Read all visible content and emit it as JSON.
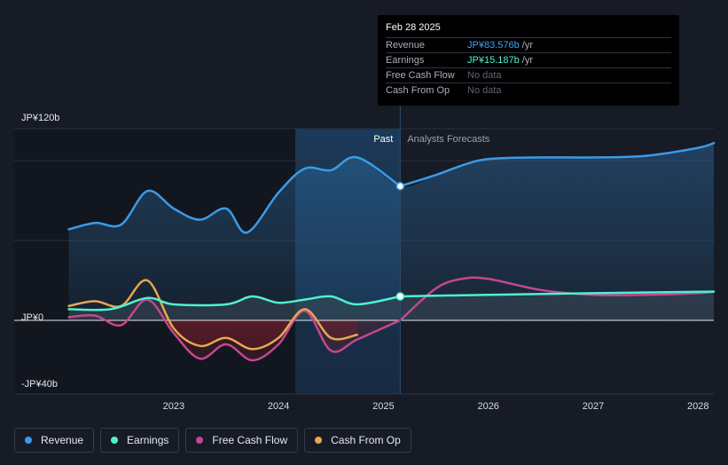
{
  "chart_data": {
    "type": "line",
    "title": "",
    "xlabel": "",
    "ylabel": "",
    "ylim": [
      -40,
      120
    ],
    "y_tick_labels": [
      {
        "value": 120,
        "label": "JP¥120b"
      },
      {
        "value": 0,
        "label": "JP¥0"
      },
      {
        "value": -40,
        "label": "-JP¥40b"
      }
    ],
    "x_tick_labels": [
      {
        "value": 2023.0,
        "label": "2023"
      },
      {
        "value": 2024.0,
        "label": "2024"
      },
      {
        "value": 2025.0,
        "label": "2025"
      },
      {
        "value": 2026.0,
        "label": "2026"
      },
      {
        "value": 2027.0,
        "label": "2027"
      },
      {
        "value": 2028.0,
        "label": "2028"
      }
    ],
    "xlim": [
      2021.75,
      2028.15
    ],
    "divider_x": 2025.16,
    "highlight_start_x": 2024.16,
    "past_label": "Past",
    "forecast_label": "Analysts Forecasts",
    "series": [
      {
        "name": "Revenue",
        "color": "#3a9be8",
        "area": true,
        "past": [
          [
            2022.0,
            57
          ],
          [
            2022.25,
            61
          ],
          [
            2022.5,
            60
          ],
          [
            2022.75,
            81
          ],
          [
            2023.0,
            70
          ],
          [
            2023.25,
            63
          ],
          [
            2023.5,
            70
          ],
          [
            2023.7,
            55
          ],
          [
            2024.0,
            80
          ],
          [
            2024.25,
            95
          ],
          [
            2024.5,
            94
          ],
          [
            2024.75,
            102
          ],
          [
            2025.16,
            84
          ]
        ],
        "forecast": [
          [
            2025.16,
            84
          ],
          [
            2025.5,
            91
          ],
          [
            2025.75,
            97
          ],
          [
            2026.0,
            101
          ],
          [
            2026.5,
            102
          ],
          [
            2027.0,
            102
          ],
          [
            2027.5,
            103
          ],
          [
            2028.0,
            108
          ],
          [
            2028.15,
            111
          ]
        ]
      },
      {
        "name": "Earnings",
        "color": "#4ff0d1",
        "area": true,
        "past": [
          [
            2022.0,
            7
          ],
          [
            2022.4,
            7
          ],
          [
            2022.75,
            14
          ],
          [
            2023.0,
            10
          ],
          [
            2023.5,
            10
          ],
          [
            2023.75,
            15
          ],
          [
            2024.0,
            11
          ],
          [
            2024.25,
            13
          ],
          [
            2024.5,
            15
          ],
          [
            2024.75,
            10
          ],
          [
            2025.16,
            15
          ]
        ],
        "forecast": [
          [
            2025.16,
            15
          ],
          [
            2026.0,
            16
          ],
          [
            2027.0,
            17
          ],
          [
            2028.15,
            18
          ]
        ]
      },
      {
        "name": "Free Cash Flow",
        "color": "#c4478f",
        "area": false,
        "past": [
          [
            2022.0,
            2
          ],
          [
            2022.25,
            3
          ],
          [
            2022.5,
            -3
          ],
          [
            2022.75,
            13
          ],
          [
            2023.0,
            -8
          ],
          [
            2023.25,
            -24
          ],
          [
            2023.5,
            -15
          ],
          [
            2023.75,
            -25
          ],
          [
            2024.0,
            -15
          ],
          [
            2024.25,
            6
          ],
          [
            2024.5,
            -19
          ],
          [
            2024.75,
            -12
          ],
          [
            2025.16,
            0
          ]
        ],
        "forecast": [
          [
            2025.16,
            0
          ],
          [
            2025.5,
            20
          ],
          [
            2025.75,
            26
          ],
          [
            2026.0,
            26
          ],
          [
            2026.5,
            19
          ],
          [
            2027.0,
            16
          ],
          [
            2027.5,
            16
          ],
          [
            2028.0,
            17
          ],
          [
            2028.15,
            18
          ]
        ]
      },
      {
        "name": "Cash From Op",
        "color": "#e8a650",
        "area": false,
        "past": [
          [
            2022.0,
            9
          ],
          [
            2022.25,
            12
          ],
          [
            2022.5,
            9
          ],
          [
            2022.75,
            25
          ],
          [
            2023.0,
            -5
          ],
          [
            2023.25,
            -16
          ],
          [
            2023.5,
            -11
          ],
          [
            2023.75,
            -18
          ],
          [
            2024.0,
            -11
          ],
          [
            2024.25,
            7
          ],
          [
            2024.5,
            -11
          ],
          [
            2024.75,
            -9
          ]
        ],
        "forecast": []
      }
    ]
  },
  "tooltip": {
    "date": "Feb 28 2025",
    "rows": [
      {
        "label": "Revenue",
        "value": "JP¥83.576b",
        "unit": " /yr",
        "kind": "revenue"
      },
      {
        "label": "Earnings",
        "value": "JP¥15.187b",
        "unit": " /yr",
        "kind": "earnings"
      },
      {
        "label": "Free Cash Flow",
        "value": "No data",
        "unit": "",
        "kind": "nodata"
      },
      {
        "label": "Cash From Op",
        "value": "No data",
        "unit": "",
        "kind": "nodata"
      }
    ]
  },
  "legend": [
    {
      "label": "Revenue",
      "color": "#3a9be8"
    },
    {
      "label": "Earnings",
      "color": "#4ff0d1"
    },
    {
      "label": "Free Cash Flow",
      "color": "#c4478f"
    },
    {
      "label": "Cash From Op",
      "color": "#e8a650"
    }
  ]
}
